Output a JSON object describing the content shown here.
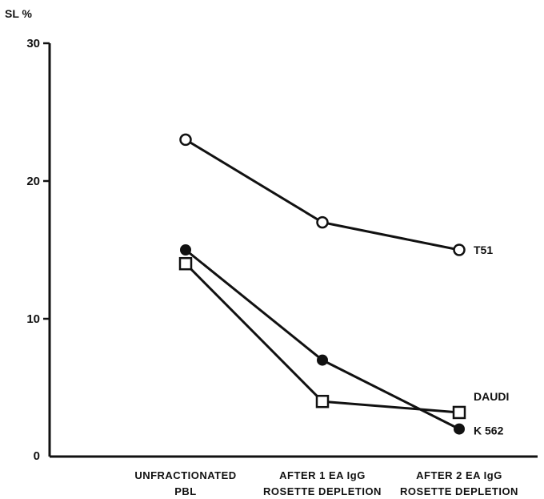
{
  "chart_data": {
    "type": "line",
    "ylabel": "SL %",
    "xlabel": "",
    "title": "",
    "ylim": [
      0,
      30
    ],
    "yticks": [
      0,
      10,
      20,
      30
    ],
    "categories": [
      [
        "UNFRACTIONATED",
        "PBL"
      ],
      [
        "AFTER 1 EA IgG",
        "ROSETTE DEPLETION"
      ],
      [
        "AFTER 2 EA IgG",
        "ROSETTE DEPLETION"
      ]
    ],
    "series": [
      {
        "name": "T51",
        "marker": "open-circle",
        "values": [
          23,
          17,
          15
        ]
      },
      {
        "name": "K 562",
        "marker": "filled-circle",
        "values": [
          15,
          7,
          2
        ]
      },
      {
        "name": "DAUDI",
        "marker": "open-square",
        "values": [
          14,
          4,
          3.2
        ]
      }
    ],
    "grid": false,
    "legend": "inline-right",
    "colors": {
      "ink": "#111111",
      "background": "#ffffff"
    }
  }
}
